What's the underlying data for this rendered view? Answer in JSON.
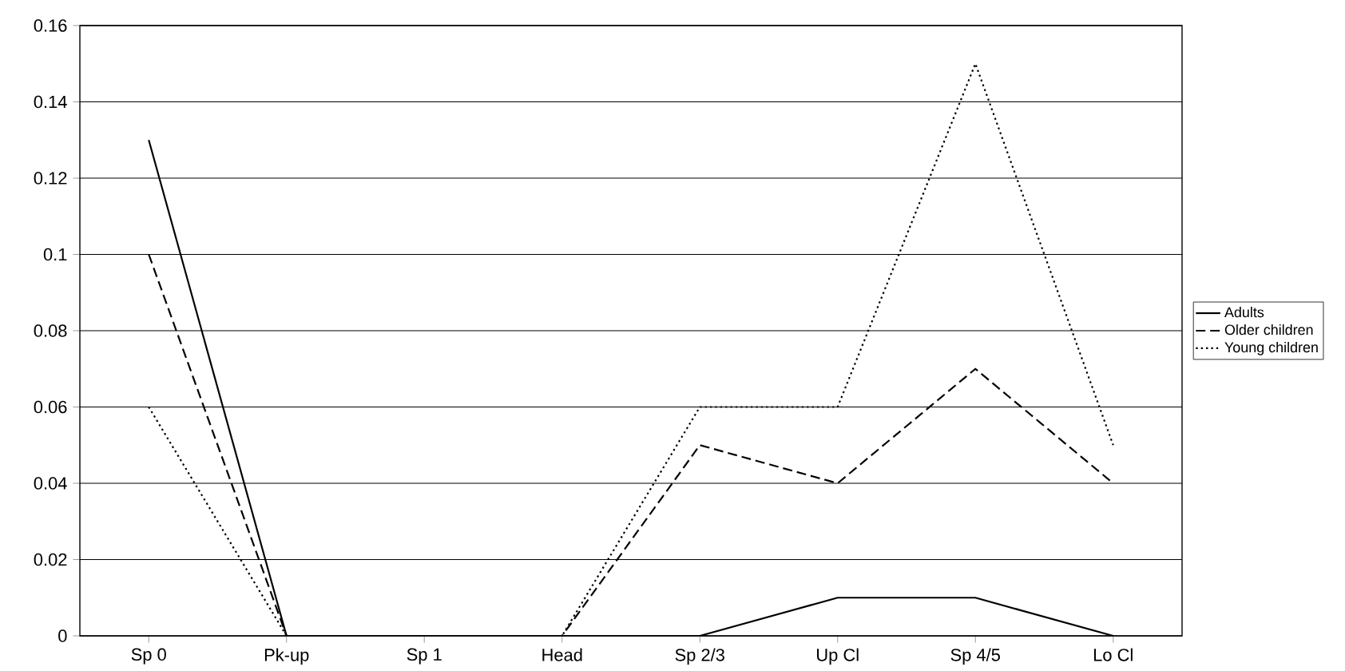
{
  "chart_data": {
    "type": "line",
    "categories": [
      "Sp 0",
      "Pk-up",
      "Sp 1",
      "Head",
      "Sp 2/3",
      "Up Cl",
      "Sp 4/5",
      "Lo Cl"
    ],
    "series": [
      {
        "name": "Adults",
        "color": "#000000",
        "line_style": "solid",
        "values": [
          0.13,
          0,
          0,
          0,
          0,
          0.01,
          0.01,
          0
        ]
      },
      {
        "name": "Older children",
        "color": "#000000",
        "line_style": "dashed",
        "values": [
          0.1,
          0,
          0,
          0,
          0.05,
          0.04,
          0.07,
          0.04
        ]
      },
      {
        "name": "Young children",
        "color": "#000000",
        "line_style": "dotted",
        "values": [
          0.06,
          0,
          0,
          0,
          0.06,
          0.06,
          0.15,
          0.05
        ]
      }
    ],
    "ylim": [
      0,
      0.16
    ],
    "yticks": [
      0,
      0.02,
      0.04,
      0.06,
      0.08,
      0.1,
      0.12,
      0.14,
      0.16
    ],
    "grid": "y",
    "legend": "right",
    "marker": "none"
  }
}
